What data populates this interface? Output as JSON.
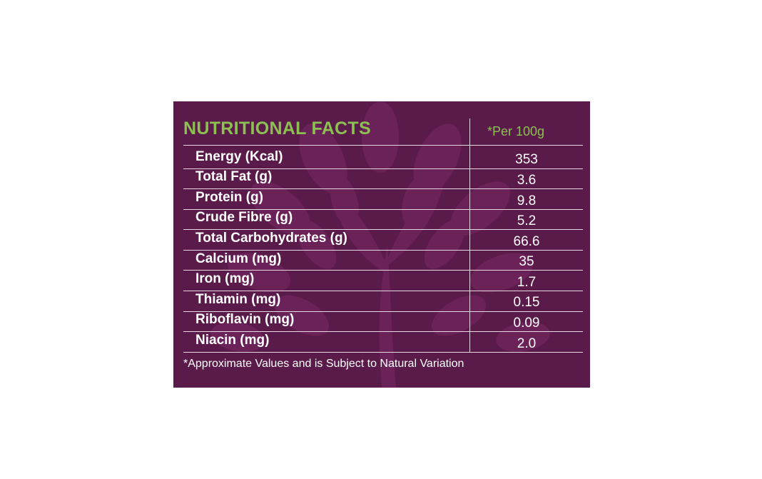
{
  "panel": {
    "background": "#5a1a4a",
    "accent": "#8cc152",
    "background_motif": "tree-of-leaves"
  },
  "table": {
    "heading": "NUTRITIONAL FACTS",
    "per_label": "*Per 100g",
    "rows": [
      {
        "nutrient": "Energy (Kcal)",
        "value": "353"
      },
      {
        "nutrient": "Total Fat (g)",
        "value": "3.6"
      },
      {
        "nutrient": "Protein (g)",
        "value": "9.8"
      },
      {
        "nutrient": "Crude Fibre (g)",
        "value": "5.2"
      },
      {
        "nutrient": "Total Carbohydrates (g)",
        "value": "66.6"
      },
      {
        "nutrient": "Calcium (mg)",
        "value": "35"
      },
      {
        "nutrient": "Iron (mg)",
        "value": "1.7"
      },
      {
        "nutrient": "Thiamin (mg)",
        "value": "0.15"
      },
      {
        "nutrient": "Riboflavin (mg)",
        "value": "0.09"
      },
      {
        "nutrient": "Niacin (mg)",
        "value": "2.0"
      }
    ],
    "footnote": "*Approximate Values and is Subject to Natural Variation"
  }
}
